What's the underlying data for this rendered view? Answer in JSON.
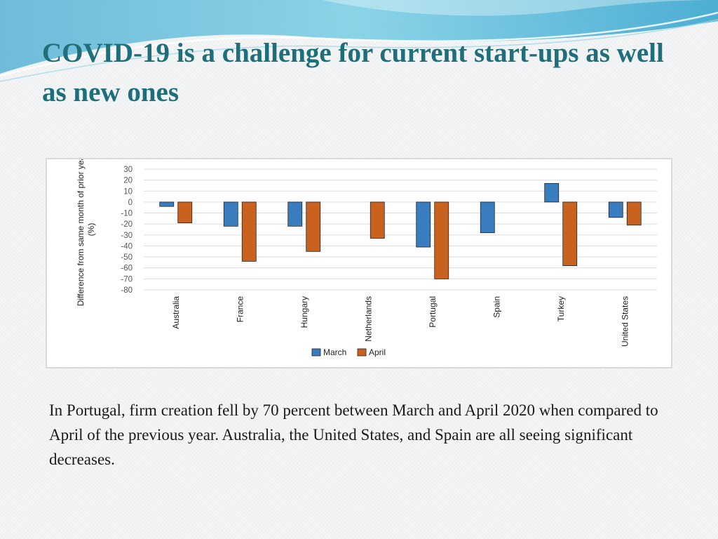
{
  "slide": {
    "title": "COVID-19 is a challenge for current start-ups as well as new ones",
    "caption": "In Portugal, firm creation fell by 70 percent between March and April 2020 when compared to April of the previous year. Australia, the United States, and Spain are all seeing significant decreases."
  },
  "chart_data": {
    "type": "bar",
    "title": "",
    "xlabel": "",
    "ylabel": "Difference from same month of prior year (%)",
    "categories": [
      "Australia",
      "France",
      "Hungary",
      "Netherlands",
      "Portugal",
      "Spain",
      "Turkey",
      "United States"
    ],
    "series": [
      {
        "name": "March",
        "color": "#3a7dbf",
        "values": [
          -4,
          -22,
          -22,
          null,
          -41,
          -28,
          17,
          -14
        ]
      },
      {
        "name": "April",
        "color": "#c9621f",
        "values": [
          -19,
          -54,
          -45,
          -33,
          -70,
          null,
          -58,
          -21
        ]
      }
    ],
    "ylim": [
      -80,
      30
    ],
    "yticks": [
      30,
      20,
      10,
      0,
      -10,
      -20,
      -30,
      -40,
      -50,
      -60,
      -70,
      -80
    ],
    "grid": true,
    "legend_position": "bottom"
  }
}
